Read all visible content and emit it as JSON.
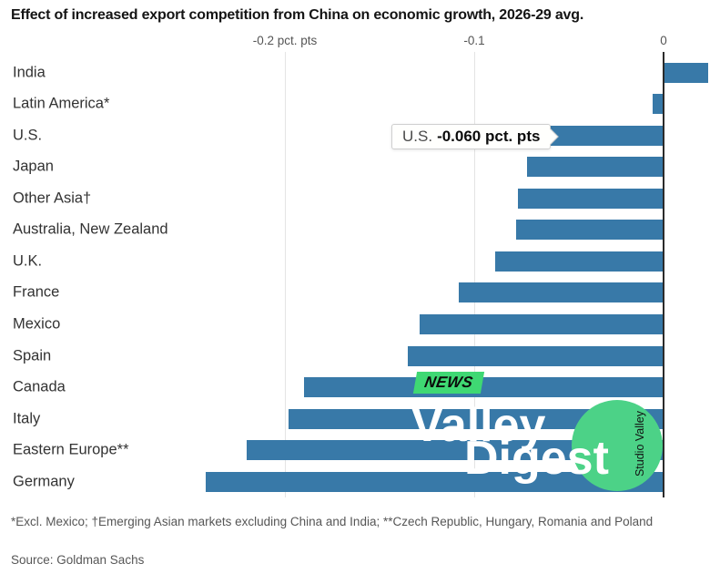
{
  "title": "Effect of increased export competition from China on economic growth, 2026-29 avg.",
  "colors": {
    "bar": "#3879a8",
    "axis": "#2b2b2b",
    "gridline": "#e4e4e4",
    "badge_green": "#3fd873",
    "circle_green": "#4cd287",
    "watermark_text": "#ffffff"
  },
  "chart_data": {
    "type": "bar",
    "orientation": "horizontal",
    "title": "Effect of increased export competition from China on economic growth, 2026-29 avg.",
    "xlabel": "pct. pts",
    "ylabel": "",
    "xlim": [
      -0.25,
      0.03
    ],
    "grid": "vertical",
    "ticks": [
      {
        "label": "-0.2 pct. pts",
        "value": -0.2
      },
      {
        "label": "-0.1",
        "value": -0.1
      },
      {
        "label": "0",
        "value": 0
      }
    ],
    "categories": [
      "India",
      "Latin America*",
      "U.S.",
      "Japan",
      "Other Asia†",
      "Australia, New Zealand",
      "U.K.",
      "France",
      "Mexico",
      "Spain",
      "Canada",
      "Italy",
      "Eastern Europe**",
      "Germany"
    ],
    "values": [
      0.023,
      -0.006,
      -0.06,
      -0.072,
      -0.077,
      -0.078,
      -0.089,
      -0.108,
      -0.129,
      -0.135,
      -0.19,
      -0.198,
      -0.22,
      -0.242
    ]
  },
  "tooltip": {
    "label": "U.S.",
    "value_text": "-0.060 pct. pts"
  },
  "watermark": {
    "badge": "NEWS",
    "line1": "Valley",
    "line2": "Digest",
    "studio": "Studio Valley"
  },
  "footnote": "*Excl. Mexico; †Emerging Asian markets excluding China and India; **Czech Republic, Hungary, Romania and Poland",
  "source": "Source: Goldman Sachs"
}
